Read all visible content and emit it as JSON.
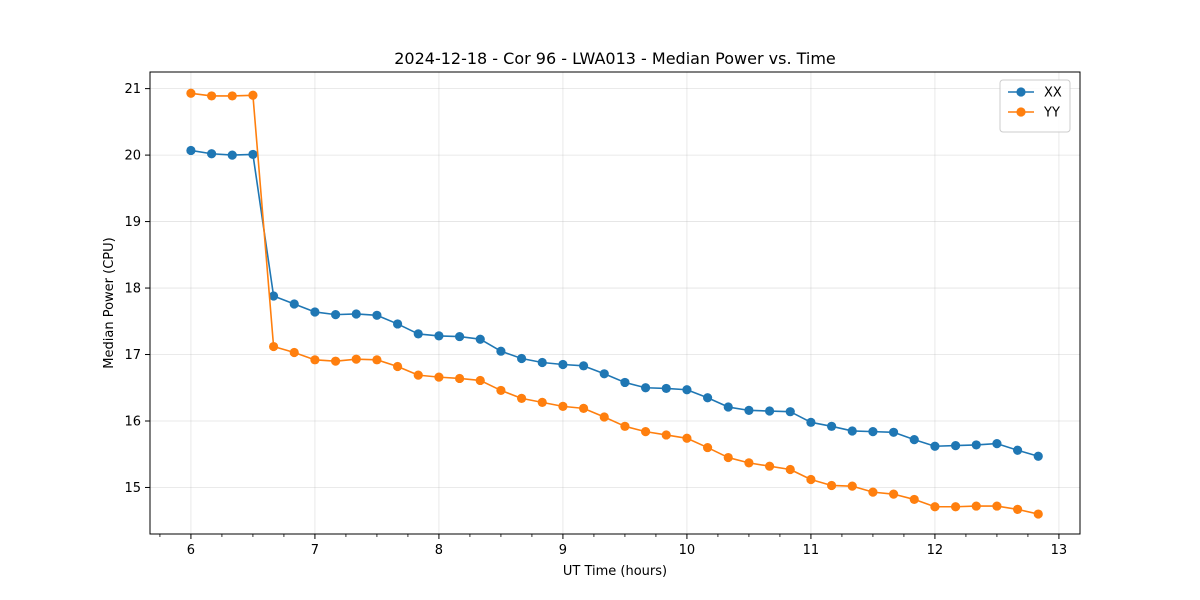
{
  "chart_data": {
    "type": "line",
    "title": "2024-12-18 - Cor 96 - LWA013 - Median Power vs. Time",
    "xlabel": "UT Time (hours)",
    "ylabel": "Median Power (CPU)",
    "xlim": [
      5.67,
      13.17
    ],
    "ylim": [
      14.3,
      21.25
    ],
    "xticks": [
      6,
      7,
      8,
      9,
      10,
      11,
      12,
      13
    ],
    "yticks": [
      15,
      16,
      17,
      18,
      19,
      20,
      21
    ],
    "minor_x_step": 0.25,
    "grid": true,
    "legend_position": "top-right",
    "x": [
      6.0,
      6.1667,
      6.3333,
      6.5,
      6.6667,
      6.8333,
      7.0,
      7.1667,
      7.3333,
      7.5,
      7.6667,
      7.8333,
      8.0,
      8.1667,
      8.3333,
      8.5,
      8.6667,
      8.8333,
      9.0,
      9.1667,
      9.3333,
      9.5,
      9.6667,
      9.8333,
      10.0,
      10.1667,
      10.3333,
      10.5,
      10.6667,
      10.8333,
      11.0,
      11.1667,
      11.3333,
      11.5,
      11.6667,
      11.8333,
      12.0,
      12.1667,
      12.3333,
      12.5,
      12.6667,
      12.8333
    ],
    "series": [
      {
        "name": "XX",
        "color": "#1f77b4",
        "values": [
          20.07,
          20.02,
          20.0,
          20.01,
          17.88,
          17.76,
          17.64,
          17.6,
          17.61,
          17.59,
          17.46,
          17.31,
          17.28,
          17.27,
          17.23,
          17.05,
          16.94,
          16.88,
          16.85,
          16.83,
          16.71,
          16.58,
          16.5,
          16.49,
          16.47,
          16.35,
          16.21,
          16.16,
          16.15,
          16.14,
          15.98,
          15.92,
          15.85,
          15.84,
          15.83,
          15.72,
          15.62,
          15.63,
          15.64,
          15.66,
          15.56,
          15.47
        ]
      },
      {
        "name": "YY",
        "color": "#ff7f0e",
        "values": [
          20.93,
          20.89,
          20.89,
          20.9,
          17.12,
          17.03,
          16.92,
          16.9,
          16.93,
          16.92,
          16.82,
          16.69,
          16.66,
          16.64,
          16.61,
          16.46,
          16.34,
          16.28,
          16.22,
          16.19,
          16.06,
          15.92,
          15.84,
          15.79,
          15.74,
          15.6,
          15.45,
          15.37,
          15.32,
          15.27,
          15.12,
          15.03,
          15.02,
          14.93,
          14.9,
          14.82,
          14.71,
          14.71,
          14.72,
          14.72,
          14.67,
          14.6
        ]
      }
    ]
  }
}
